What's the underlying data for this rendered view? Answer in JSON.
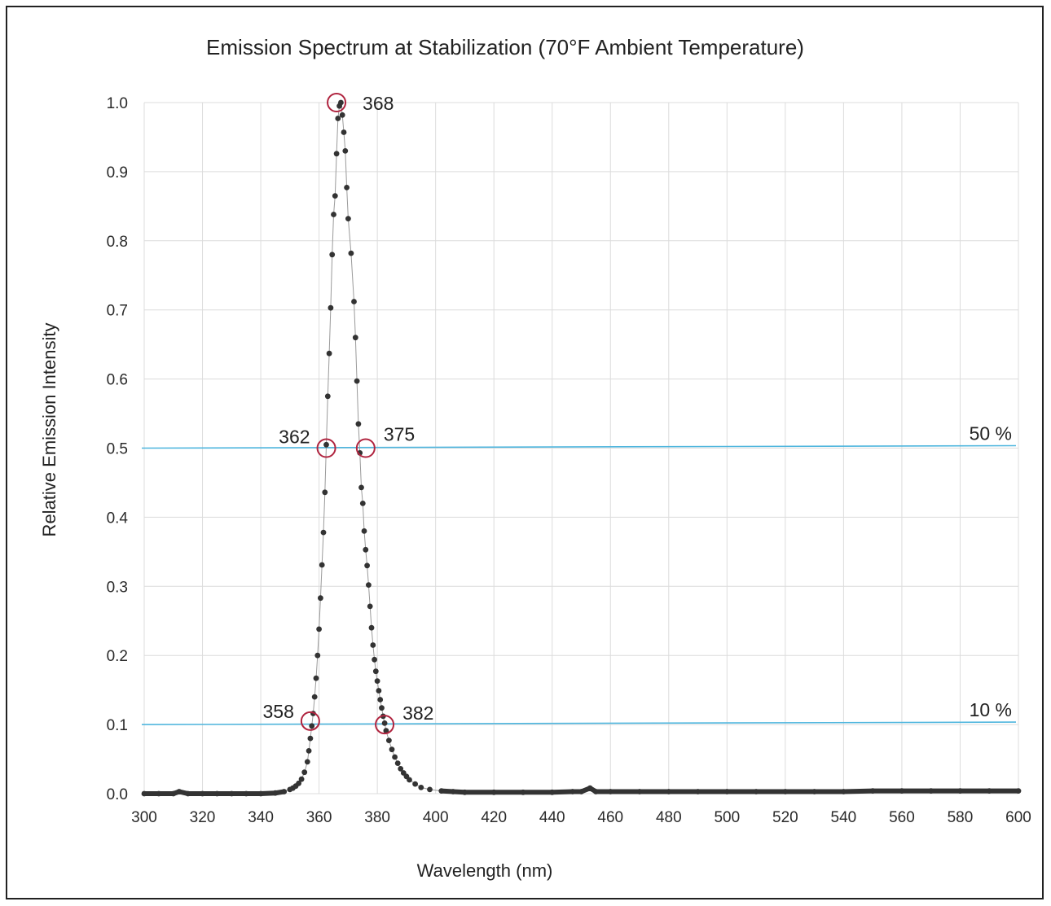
{
  "chart_data": {
    "type": "scatter",
    "title": "Emission Spectrum at Stabilization (70°F Ambient Temperature)",
    "xlabel": "Wavelength (nm)",
    "ylabel": "Relative Emission Intensity",
    "xlim": [
      300,
      600
    ],
    "ylim": [
      0,
      1
    ],
    "x_ticks": [
      "300",
      "320",
      "340",
      "360",
      "380",
      "400",
      "420",
      "440",
      "460",
      "480",
      "500",
      "520",
      "540",
      "560",
      "580",
      "600"
    ],
    "y_ticks": [
      "0.0",
      "0.1",
      "0.2",
      "0.3",
      "0.4",
      "0.5",
      "0.6",
      "0.7",
      "0.8",
      "0.9",
      "1.0"
    ],
    "grid": true,
    "legend": "none",
    "series": [
      {
        "color": "#333333",
        "line_color": "#9a9a9a",
        "points": [
          [
            300,
            0.0
          ],
          [
            305,
            0.0
          ],
          [
            310,
            0.0
          ],
          [
            312,
            0.003
          ],
          [
            315,
            0.0
          ],
          [
            320,
            0.0
          ],
          [
            325,
            0.0
          ],
          [
            330,
            0.0
          ],
          [
            335,
            0.0
          ],
          [
            340,
            0.0
          ],
          [
            345,
            0.001
          ],
          [
            348,
            0.003
          ],
          [
            350,
            0.006
          ],
          [
            351,
            0.008
          ],
          [
            352,
            0.011
          ],
          [
            353,
            0.015
          ],
          [
            354,
            0.021
          ],
          [
            355,
            0.031
          ],
          [
            356,
            0.046
          ],
          [
            356.5,
            0.062
          ],
          [
            357,
            0.08
          ],
          [
            357.5,
            0.098
          ],
          [
            358,
            0.116
          ],
          [
            358.5,
            0.14
          ],
          [
            359,
            0.167
          ],
          [
            359.5,
            0.2
          ],
          [
            360,
            0.238
          ],
          [
            360.5,
            0.283
          ],
          [
            361,
            0.331
          ],
          [
            361.5,
            0.378
          ],
          [
            362,
            0.436
          ],
          [
            362.5,
            0.505
          ],
          [
            363,
            0.575
          ],
          [
            363.5,
            0.637
          ],
          [
            364,
            0.703
          ],
          [
            364.5,
            0.78
          ],
          [
            365,
            0.838
          ],
          [
            365.5,
            0.865
          ],
          [
            366,
            0.926
          ],
          [
            366.5,
            0.977
          ],
          [
            367,
            0.995
          ],
          [
            367.5,
            1.0
          ],
          [
            368,
            0.982
          ],
          [
            368.5,
            0.957
          ],
          [
            369,
            0.93
          ],
          [
            369.5,
            0.877
          ],
          [
            370,
            0.832
          ],
          [
            371,
            0.782
          ],
          [
            372,
            0.712
          ],
          [
            372.5,
            0.66
          ],
          [
            373,
            0.597
          ],
          [
            373.5,
            0.535
          ],
          [
            374,
            0.493
          ],
          [
            374.5,
            0.443
          ],
          [
            375,
            0.42
          ],
          [
            375.5,
            0.38
          ],
          [
            376,
            0.353
          ],
          [
            376.5,
            0.33
          ],
          [
            377,
            0.302
          ],
          [
            377.5,
            0.271
          ],
          [
            378,
            0.24
          ],
          [
            378.5,
            0.215
          ],
          [
            379,
            0.194
          ],
          [
            379.5,
            0.177
          ],
          [
            380,
            0.163
          ],
          [
            380.5,
            0.149
          ],
          [
            381,
            0.136
          ],
          [
            381.5,
            0.124
          ],
          [
            382,
            0.112
          ],
          [
            382.5,
            0.102
          ],
          [
            383,
            0.091
          ],
          [
            384,
            0.077
          ],
          [
            385,
            0.064
          ],
          [
            386,
            0.053
          ],
          [
            387,
            0.044
          ],
          [
            388,
            0.036
          ],
          [
            389,
            0.03
          ],
          [
            390,
            0.025
          ],
          [
            391,
            0.02
          ],
          [
            393,
            0.014
          ],
          [
            395,
            0.009
          ],
          [
            398,
            0.006
          ],
          [
            402,
            0.004
          ],
          [
            406,
            0.003
          ],
          [
            410,
            0.002
          ],
          [
            420,
            0.002
          ],
          [
            430,
            0.002
          ],
          [
            440,
            0.002
          ],
          [
            447,
            0.003
          ],
          [
            450,
            0.003
          ],
          [
            453,
            0.008
          ],
          [
            455,
            0.003
          ],
          [
            460,
            0.003
          ],
          [
            470,
            0.003
          ],
          [
            480,
            0.003
          ],
          [
            490,
            0.003
          ],
          [
            500,
            0.003
          ],
          [
            510,
            0.003
          ],
          [
            520,
            0.003
          ],
          [
            530,
            0.003
          ],
          [
            540,
            0.003
          ],
          [
            550,
            0.004
          ],
          [
            560,
            0.004
          ],
          [
            570,
            0.004
          ],
          [
            580,
            0.004
          ],
          [
            590,
            0.004
          ],
          [
            600,
            0.004
          ]
        ]
      }
    ],
    "threshold_lines": [
      {
        "label": "50 %",
        "y": 0.5,
        "color": "#4fb6de"
      },
      {
        "label": "10 %",
        "y": 0.1,
        "color": "#4fb6de"
      }
    ],
    "annotations": [
      {
        "label": "368",
        "x": 366,
        "y": 1.0
      },
      {
        "label": "362",
        "x": 362.5,
        "y": 0.5
      },
      {
        "label": "375",
        "x": 376,
        "y": 0.5
      },
      {
        "label": "358",
        "x": 357,
        "y": 0.105
      },
      {
        "label": "382",
        "x": 382.5,
        "y": 0.1
      }
    ],
    "annotation_circle_color": "#b0243f"
  }
}
